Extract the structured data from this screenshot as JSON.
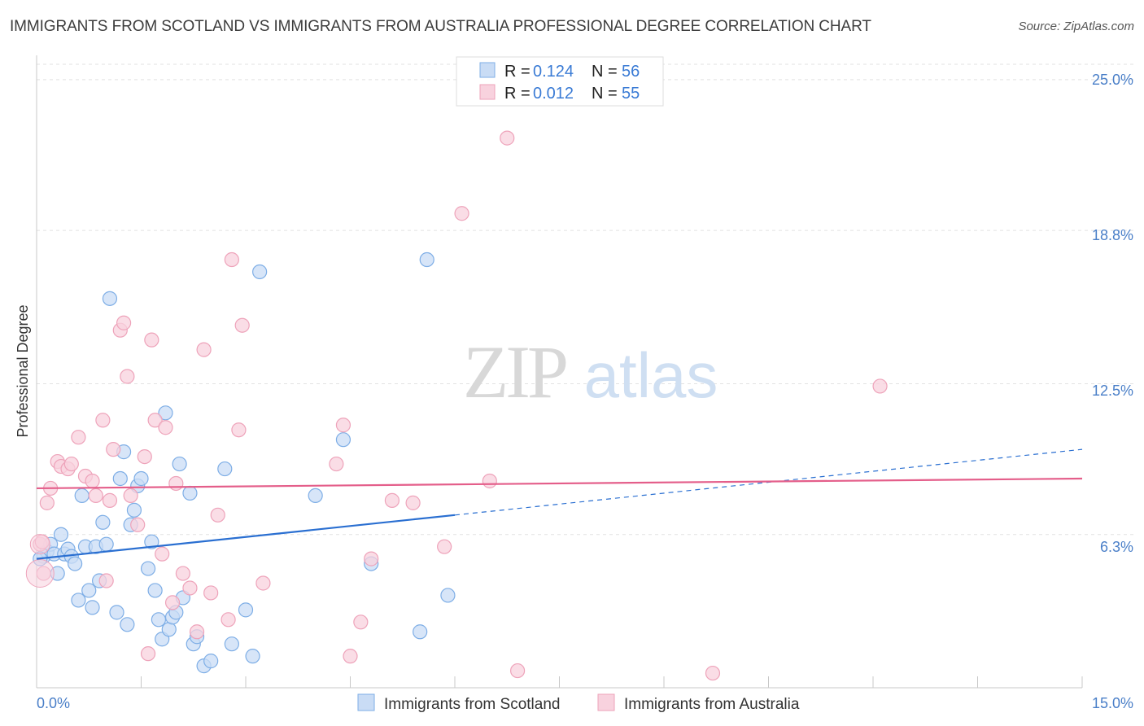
{
  "chart_data": {
    "type": "scatter",
    "title": "IMMIGRANTS FROM SCOTLAND VS IMMIGRANTS FROM AUSTRALIA PROFESSIONAL DEGREE CORRELATION CHART",
    "source": "Source: ZipAtlas.com",
    "xlabel": "",
    "ylabel": "Professional Degree",
    "xlim": [
      0,
      15
    ],
    "ylim": [
      0,
      26
    ],
    "x_tick_labels": [
      "0.0%",
      "15.0%"
    ],
    "y_ticks": [
      6.3,
      12.5,
      18.8,
      25.0
    ],
    "y_tick_labels": [
      "6.3%",
      "12.5%",
      "18.8%",
      "25.0%"
    ],
    "watermark": {
      "zip": "ZIP",
      "atlas": "atlas"
    },
    "legend": {
      "r_label": "R =",
      "n_label": "N =",
      "entries": [
        {
          "r": "0.124",
          "n": "56"
        },
        {
          "r": "0.012",
          "n": "55"
        }
      ]
    },
    "series": [
      {
        "name": "Immigrants from Scotland",
        "color": "#7eaee6",
        "fill": "#c9dcf5",
        "line_color": "#2a6fd1",
        "trend": {
          "x0": 0,
          "y0": 5.3,
          "x1": 6.0,
          "y1": 7.1,
          "dash_to_x": 15,
          "dash_to_y": 9.8
        },
        "points": [
          [
            0.1,
            5.4
          ],
          [
            0.15,
            5.6
          ],
          [
            0.2,
            5.9
          ],
          [
            0.25,
            5.5
          ],
          [
            0.3,
            4.7
          ],
          [
            0.35,
            6.3
          ],
          [
            0.4,
            5.5
          ],
          [
            0.45,
            5.7
          ],
          [
            0.5,
            5.4
          ],
          [
            0.55,
            5.1
          ],
          [
            0.6,
            3.6
          ],
          [
            0.65,
            7.9
          ],
          [
            0.7,
            5.8
          ],
          [
            0.75,
            4.0
          ],
          [
            0.8,
            3.3
          ],
          [
            0.85,
            5.8
          ],
          [
            0.9,
            4.4
          ],
          [
            0.95,
            6.8
          ],
          [
            1.0,
            5.9
          ],
          [
            1.05,
            16.0
          ],
          [
            1.15,
            3.1
          ],
          [
            1.2,
            8.6
          ],
          [
            1.25,
            9.7
          ],
          [
            1.3,
            2.6
          ],
          [
            1.35,
            6.7
          ],
          [
            1.4,
            7.3
          ],
          [
            1.45,
            8.3
          ],
          [
            1.5,
            8.6
          ],
          [
            1.6,
            4.9
          ],
          [
            1.65,
            6.0
          ],
          [
            1.7,
            4.0
          ],
          [
            1.75,
            2.8
          ],
          [
            1.8,
            2.0
          ],
          [
            1.85,
            11.3
          ],
          [
            1.9,
            2.4
          ],
          [
            1.95,
            2.9
          ],
          [
            2.0,
            3.1
          ],
          [
            2.05,
            9.2
          ],
          [
            2.1,
            3.7
          ],
          [
            2.2,
            8.0
          ],
          [
            2.25,
            1.8
          ],
          [
            2.3,
            2.1
          ],
          [
            2.4,
            0.9
          ],
          [
            2.5,
            1.1
          ],
          [
            2.7,
            9.0
          ],
          [
            2.8,
            1.8
          ],
          [
            3.0,
            3.2
          ],
          [
            3.1,
            1.3
          ],
          [
            3.2,
            17.1
          ],
          [
            4.0,
            7.9
          ],
          [
            4.4,
            10.2
          ],
          [
            4.8,
            5.1
          ],
          [
            5.5,
            2.3
          ],
          [
            5.6,
            17.6
          ],
          [
            5.9,
            3.8
          ],
          [
            0.05,
            5.3
          ]
        ]
      },
      {
        "name": "Immigrants from Australia",
        "color": "#eea3ba",
        "fill": "#f8d2de",
        "line_color": "#e45e8a",
        "trend": {
          "x0": 0,
          "y0": 8.2,
          "x1": 15,
          "y1": 8.6
        },
        "points": [
          [
            0.05,
            5.9
          ],
          [
            0.1,
            4.7
          ],
          [
            0.15,
            7.6
          ],
          [
            0.2,
            8.2
          ],
          [
            0.3,
            9.3
          ],
          [
            0.35,
            9.1
          ],
          [
            0.45,
            9.0
          ],
          [
            0.5,
            9.2
          ],
          [
            0.6,
            10.3
          ],
          [
            0.7,
            8.7
          ],
          [
            0.8,
            8.5
          ],
          [
            0.85,
            7.9
          ],
          [
            0.95,
            11.0
          ],
          [
            1.0,
            4.4
          ],
          [
            1.05,
            7.7
          ],
          [
            1.1,
            9.8
          ],
          [
            1.2,
            14.7
          ],
          [
            1.25,
            15.0
          ],
          [
            1.3,
            12.8
          ],
          [
            1.35,
            7.9
          ],
          [
            1.45,
            6.7
          ],
          [
            1.55,
            9.5
          ],
          [
            1.6,
            1.4
          ],
          [
            1.65,
            14.3
          ],
          [
            1.7,
            11.0
          ],
          [
            1.8,
            5.5
          ],
          [
            1.85,
            10.7
          ],
          [
            1.95,
            3.5
          ],
          [
            2.0,
            8.4
          ],
          [
            2.1,
            4.7
          ],
          [
            2.2,
            4.1
          ],
          [
            2.3,
            2.3
          ],
          [
            2.4,
            13.9
          ],
          [
            2.5,
            3.9
          ],
          [
            2.6,
            7.1
          ],
          [
            2.75,
            2.8
          ],
          [
            2.8,
            17.6
          ],
          [
            2.9,
            10.6
          ],
          [
            2.95,
            14.9
          ],
          [
            3.25,
            4.3
          ],
          [
            4.3,
            9.2
          ],
          [
            4.4,
            10.8
          ],
          [
            4.5,
            1.3
          ],
          [
            4.65,
            2.7
          ],
          [
            4.8,
            5.3
          ],
          [
            5.1,
            7.7
          ],
          [
            5.4,
            7.6
          ],
          [
            5.85,
            5.8
          ],
          [
            6.1,
            19.5
          ],
          [
            6.5,
            8.5
          ],
          [
            6.75,
            22.6
          ],
          [
            6.9,
            0.7
          ],
          [
            9.7,
            0.6
          ],
          [
            12.1,
            12.4
          ],
          [
            0.08,
            6.0
          ]
        ]
      }
    ]
  }
}
